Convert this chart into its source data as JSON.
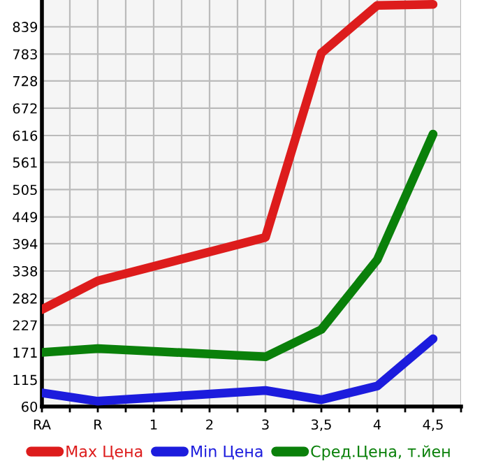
{
  "chart_data": {
    "type": "line",
    "categories": [
      "RA",
      "R",
      "1",
      "2",
      "3",
      "3,5",
      "4",
      "4,5"
    ],
    "series": [
      {
        "name": "Max Цена",
        "color": "#dd1c1c",
        "values": [
          259,
          318,
          null,
          null,
          407,
          785,
          883,
          885
        ]
      },
      {
        "name": "Min Цена",
        "color": "#1c1cdd",
        "values": [
          88,
          71,
          null,
          null,
          93,
          74,
          102,
          199
        ]
      },
      {
        "name": "Сред.Цена, т.йен",
        "color": "#0a800a",
        "values": [
          171,
          179,
          null,
          null,
          162,
          218,
          361,
          619
        ]
      }
    ],
    "ylim": [
      60,
      894
    ],
    "yticks": [
      60,
      115,
      171,
      227,
      282,
      338,
      394,
      449,
      505,
      561,
      616,
      672,
      728,
      783,
      839
    ],
    "grid": true,
    "legend": "bottom",
    "marker": "none",
    "line_style": "solid"
  }
}
